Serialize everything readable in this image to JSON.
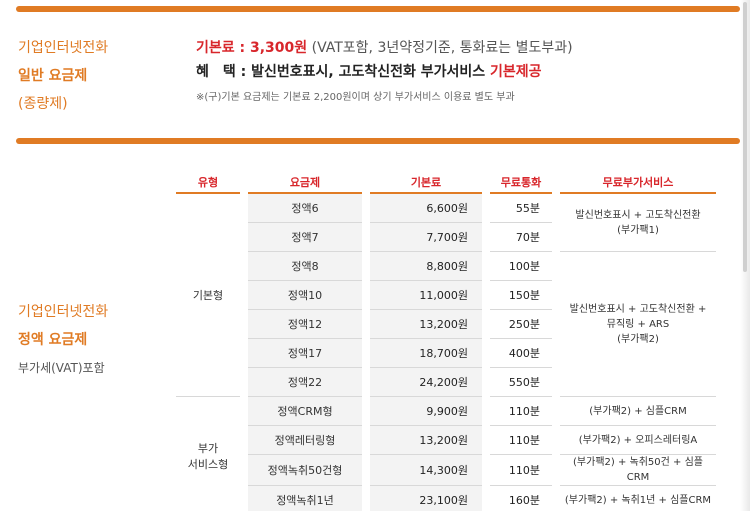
{
  "section1": {
    "label_line1": "기업인터넷전화",
    "label_line2": "일반 요금제",
    "label_line3": "(종량제)",
    "fee_label": "기본료 : 3,300원",
    "fee_detail": " (VAT포함, 3년약정기준, 통화료는 별도부과)",
    "benefit_label": "혜　택 : ",
    "benefit_text": "발신번호표시, 고도착신전화 부가서비스 ",
    "benefit_highlight": "기본제공",
    "note": "※(구)기본 요금제는 기본료 2,200원이며 상기 부가서비스 이용료 별도 부과"
  },
  "section2": {
    "label_line1": "기업인터넷전화",
    "label_line2": "정액 요금제",
    "label_line3": "부가세(VAT)포함"
  },
  "table": {
    "headers": [
      "유형",
      "요금제",
      "기본료",
      "무료통화",
      "무료부가서비스"
    ],
    "type_basic": "기본형",
    "type_addon_1": "부가",
    "type_addon_2": "서비스형",
    "rows": [
      {
        "plan": "정액6",
        "fee": "6,600원",
        "free": "55분"
      },
      {
        "plan": "정액7",
        "fee": "7,700원",
        "free": "70분"
      },
      {
        "plan": "정액8",
        "fee": "8,800원",
        "free": "100분"
      },
      {
        "plan": "정액10",
        "fee": "11,000원",
        "free": "150분"
      },
      {
        "plan": "정액12",
        "fee": "13,200원",
        "free": "250분"
      },
      {
        "plan": "정액17",
        "fee": "18,700원",
        "free": "400분"
      },
      {
        "plan": "정액22",
        "fee": "24,200원",
        "free": "550분"
      },
      {
        "plan": "정액CRM형",
        "fee": "9,900원",
        "free": "110분"
      },
      {
        "plan": "정액레터링형",
        "fee": "13,200원",
        "free": "110분"
      },
      {
        "plan": "정액녹취50건형",
        "fee": "14,300원",
        "free": "110분"
      },
      {
        "plan": "정액녹취1년",
        "fee": "23,100원",
        "free": "160분"
      }
    ],
    "svc_pack1_line1": "발신번호표시 + 고도착신전환",
    "svc_pack1_line2": "(부가팩1)",
    "svc_pack2_line1": "발신번호표시 + 고도착신전환 +",
    "svc_pack2_line2": "뮤직링 + ARS",
    "svc_pack2_line3": "(부가팩2)",
    "svc_crm": "(부가팩2) + 심플CRM",
    "svc_lettering": "(부가팩2) + 오피스레터링A",
    "svc_rec50": "(부가팩2) + 녹취50건 + 심플CRM",
    "svc_rec1y": "(부가팩2) + 녹취1년 + 심플CRM"
  },
  "colors": {
    "accent": "#e07b24",
    "highlight": "#d8262b"
  }
}
